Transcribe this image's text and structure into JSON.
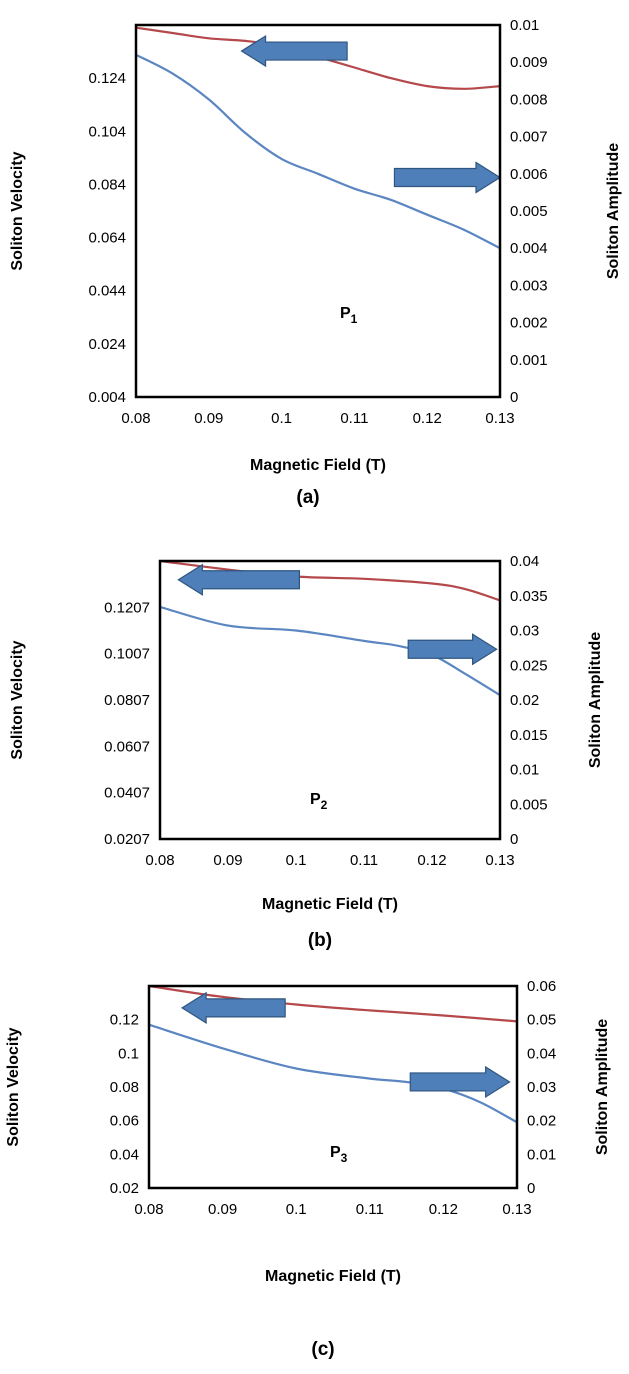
{
  "colors": {
    "velocity": "#b5484a",
    "amplitude": "#5b86c2",
    "arrow_fill": "#4f7fb8",
    "arrow_stroke": "#2f5580"
  },
  "chart_data": [
    {
      "type": "line",
      "caption": "(a)",
      "panel_label": {
        "main": "P",
        "sub": "1"
      },
      "xlabel": "Magnetic Field (T)",
      "ylabel": "Soliton Velocity",
      "y2label": "Soliton Amplitude",
      "xlim": [
        0.08,
        0.13
      ],
      "x_ticks": [
        "0.08",
        "0.09",
        "0.1",
        "0.11",
        "0.12",
        "0.13"
      ],
      "ylim": [
        0.004,
        0.144
      ],
      "y_ticks": [
        "0.004",
        "0.024",
        "0.044",
        "0.064",
        "0.084",
        "0.104",
        "0.124"
      ],
      "y_tick_values": [
        0.004,
        0.024,
        0.044,
        0.064,
        0.084,
        0.104,
        0.124
      ],
      "y2lim": [
        0,
        0.01
      ],
      "y2_ticks": [
        "0",
        "0.001",
        "0.002",
        "0.003",
        "0.004",
        "0.005",
        "0.006",
        "0.007",
        "0.008",
        "0.009",
        "0.01"
      ],
      "y2_tick_values": [
        0,
        0.001,
        0.002,
        0.003,
        0.004,
        0.005,
        0.006,
        0.007,
        0.008,
        0.009,
        0.01
      ],
      "series": [
        {
          "axis": "left",
          "x": [
            0.08,
            0.085,
            0.09,
            0.095,
            0.1,
            0.105,
            0.11,
            0.115,
            0.12,
            0.125,
            0.13
          ],
          "values": [
            0.143,
            0.141,
            0.139,
            0.138,
            0.136,
            0.132,
            0.128,
            0.124,
            0.121,
            0.12,
            0.121
          ]
        },
        {
          "axis": "right",
          "x": [
            0.08,
            0.085,
            0.09,
            0.095,
            0.1,
            0.105,
            0.11,
            0.115,
            0.12,
            0.125,
            0.13
          ],
          "values": [
            0.0092,
            0.0087,
            0.008,
            0.0071,
            0.0064,
            0.006,
            0.0056,
            0.0053,
            0.0049,
            0.0045,
            0.004
          ]
        }
      ],
      "arrows": [
        {
          "direction": "left",
          "x_from": 0.109,
          "x_to": 0.0945,
          "y": 0.0093,
          "axis": "right"
        },
        {
          "direction": "right",
          "x_from": 0.1155,
          "x_to": 0.13,
          "y": 0.0059,
          "axis": "right"
        }
      ]
    },
    {
      "type": "line",
      "caption": "(b)",
      "panel_label": {
        "main": "P",
        "sub": "2"
      },
      "xlabel": "Magnetic Field (T)",
      "ylabel": "Soliton Velocity",
      "y2label": "Soliton Amplitude",
      "xlim": [
        0.08,
        0.13
      ],
      "x_ticks": [
        "0.08",
        "0.09",
        "0.1",
        "0.11",
        "0.12",
        "0.13"
      ],
      "ylim": [
        0.0207,
        0.1407
      ],
      "y_ticks": [
        "0.0207",
        "0.0407",
        "0.0607",
        "0.0807",
        "0.1007",
        "0.1207"
      ],
      "y_tick_values": [
        0.0207,
        0.0407,
        0.0607,
        0.0807,
        0.1007,
        0.1207
      ],
      "y2lim": [
        0,
        0.04
      ],
      "y2_ticks": [
        "0",
        "0.005",
        "0.01",
        "0.015",
        "0.02",
        "0.025",
        "0.03",
        "0.035",
        "0.04"
      ],
      "y2_tick_values": [
        0,
        0.005,
        0.01,
        0.015,
        0.02,
        0.025,
        0.03,
        0.035,
        0.04
      ],
      "series": [
        {
          "axis": "left",
          "x": [
            0.08,
            0.09,
            0.1,
            0.11,
            0.12,
            0.125,
            0.13
          ],
          "values": [
            0.1407,
            0.137,
            0.134,
            0.133,
            0.131,
            0.1285,
            0.1237
          ]
        },
        {
          "axis": "right",
          "x": [
            0.08,
            0.09,
            0.1,
            0.11,
            0.115,
            0.12,
            0.125,
            0.13
          ],
          "values": [
            0.0334,
            0.0307,
            0.03,
            0.0285,
            0.0278,
            0.0265,
            0.0237,
            0.0207
          ]
        }
      ],
      "arrows": [
        {
          "direction": "left",
          "x_from": 0.1005,
          "x_to": 0.0827,
          "y": 0.0373,
          "axis": "right"
        },
        {
          "direction": "right",
          "x_from": 0.1165,
          "x_to": 0.1295,
          "y": 0.0273,
          "axis": "right"
        }
      ]
    },
    {
      "type": "line",
      "caption": "(c)",
      "panel_label": {
        "main": "P",
        "sub": "3"
      },
      "xlabel": "Magnetic Field (T)",
      "ylabel": "Soliton Velocity",
      "y2label": "Soliton Amplitude",
      "xlim": [
        0.08,
        0.13
      ],
      "x_ticks": [
        "0.08",
        "0.09",
        "0.1",
        "0.11",
        "0.12",
        "0.13"
      ],
      "ylim": [
        0.02,
        0.14
      ],
      "y_ticks": [
        "0.02",
        "0.04",
        "0.06",
        "0.08",
        "0.1",
        "0.12"
      ],
      "y_tick_values": [
        0.02,
        0.04,
        0.06,
        0.08,
        0.1,
        0.12
      ],
      "y2lim": [
        0,
        0.06
      ],
      "y2_ticks": [
        "0",
        "0.01",
        "0.02",
        "0.03",
        "0.04",
        "0.05",
        "0.06"
      ],
      "y2_tick_values": [
        0,
        0.01,
        0.02,
        0.03,
        0.04,
        0.05,
        0.06
      ],
      "series": [
        {
          "axis": "left",
          "x": [
            0.08,
            0.09,
            0.1,
            0.11,
            0.12,
            0.13
          ],
          "values": [
            0.14,
            0.1335,
            0.129,
            0.1255,
            0.1225,
            0.119
          ]
        },
        {
          "axis": "right",
          "x": [
            0.08,
            0.09,
            0.1,
            0.11,
            0.115,
            0.12,
            0.125,
            0.13
          ],
          "values": [
            0.0485,
            0.0415,
            0.0355,
            0.0325,
            0.0315,
            0.0295,
            0.0255,
            0.0195
          ]
        }
      ],
      "arrows": [
        {
          "direction": "left",
          "x_from": 0.0985,
          "x_to": 0.0845,
          "y": 0.0535,
          "axis": "right"
        },
        {
          "direction": "right",
          "x_from": 0.1155,
          "x_to": 0.129,
          "y": 0.0315,
          "axis": "right"
        }
      ]
    }
  ]
}
